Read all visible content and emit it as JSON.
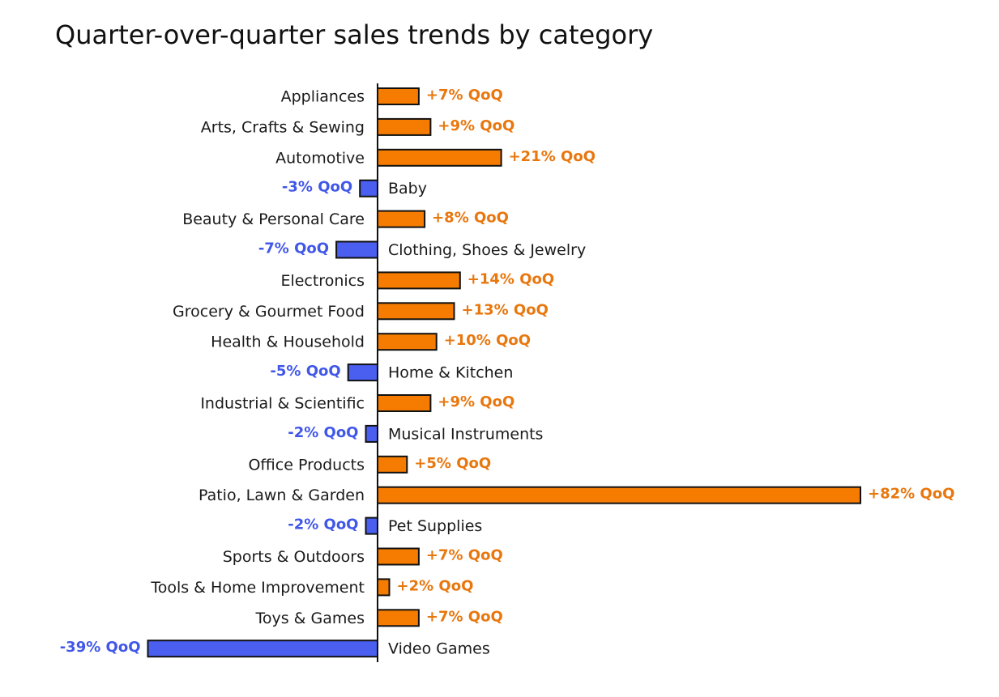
{
  "chart_data": {
    "type": "bar",
    "orientation": "horizontal",
    "title": "Quarter-over-quarter sales trends by category",
    "xlabel": "",
    "ylabel": "",
    "value_suffix": "% QoQ",
    "xlim": [
      -39,
      82
    ],
    "grid": false,
    "legend": "none",
    "colors": {
      "positive": "#f57c00",
      "positive_text": "#e8770e",
      "negative": "#4a5ff0",
      "negative_text": "#4157e8",
      "outline": "#111111",
      "axis": "#111111"
    },
    "categories": [
      "Appliances",
      "Arts, Crafts & Sewing",
      "Automotive",
      "Baby",
      "Beauty & Personal Care",
      "Clothing, Shoes & Jewelry",
      "Electronics",
      "Grocery & Gourmet Food",
      "Health & Household",
      "Home & Kitchen",
      "Industrial & Scientific",
      "Musical Instruments",
      "Office Products",
      "Patio, Lawn & Garden",
      "Pet Supplies",
      "Sports & Outdoors",
      "Tools & Home Improvement",
      "Toys & Games",
      "Video Games"
    ],
    "values": [
      7,
      9,
      21,
      -3,
      8,
      -7,
      14,
      13,
      10,
      -5,
      9,
      -2,
      5,
      82,
      -2,
      7,
      2,
      7,
      -39
    ],
    "value_labels": [
      "+7% QoQ",
      "+9% QoQ",
      "+21% QoQ",
      "-3% QoQ",
      "+8% QoQ",
      "-7% QoQ",
      "+14% QoQ",
      "+13% QoQ",
      "+10% QoQ",
      "-5% QoQ",
      "+9% QoQ",
      "-2% QoQ",
      "+5% QoQ",
      "+82% QoQ",
      "-2% QoQ",
      "+7% QoQ",
      "+2% QoQ",
      "+7% QoQ",
      "-39% QoQ"
    ]
  }
}
